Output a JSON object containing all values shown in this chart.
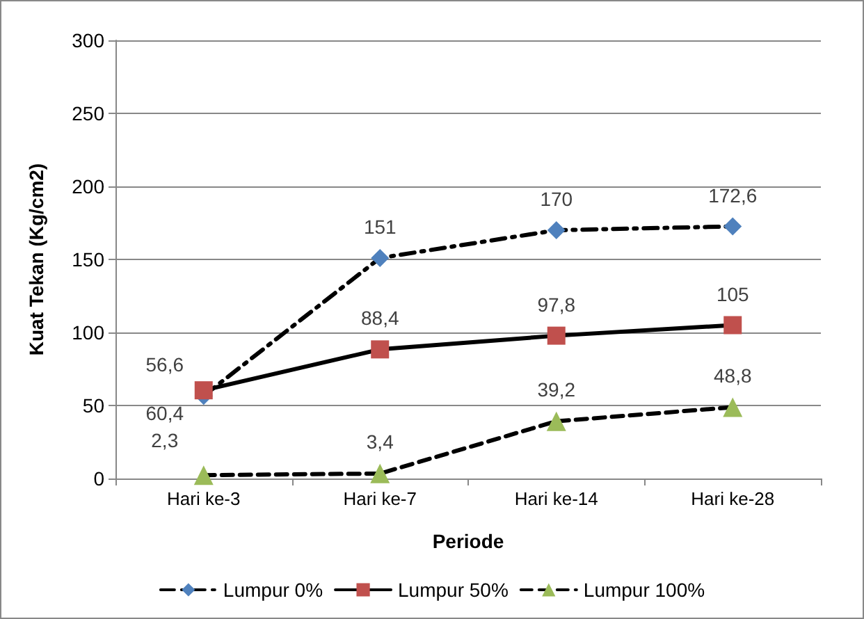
{
  "chart_data": {
    "type": "line",
    "xlabel": "Periode",
    "ylabel": "Kuat Tekan (Kg/cm2)",
    "categories": [
      "Hari ke-3",
      "Hari ke-7",
      "Hari ke-14",
      "Hari ke-28"
    ],
    "series": [
      {
        "name": "Lumpur 0%",
        "color": "#4f81bd",
        "marker": "diamond",
        "line_style": "dashdot",
        "values": [
          56.6,
          151,
          170,
          172.6
        ],
        "value_labels": [
          "56,6",
          "151",
          "170",
          "172,6"
        ]
      },
      {
        "name": "Lumpur 50%",
        "color": "#c0504d",
        "marker": "square",
        "line_style": "solid",
        "values": [
          60.4,
          88.4,
          97.8,
          105
        ],
        "value_labels": [
          "60,4",
          "88,4",
          "97,8",
          "105"
        ]
      },
      {
        "name": "Lumpur 100%",
        "color": "#9bbb59",
        "marker": "triangle",
        "line_style": "dashed",
        "values": [
          2.3,
          3.4,
          39.2,
          48.8
        ],
        "value_labels": [
          "2,3",
          "3,4",
          "39,2",
          "48,8"
        ]
      }
    ],
    "ylim": [
      0,
      300
    ],
    "yticks": [
      0,
      50,
      100,
      150,
      200,
      250,
      300
    ],
    "grid": "y",
    "legend": "bottom"
  }
}
